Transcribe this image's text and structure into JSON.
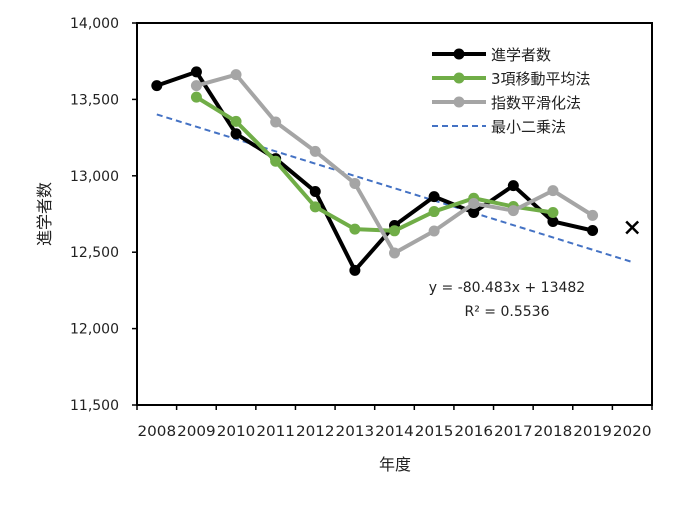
{
  "chart_data": {
    "type": "line",
    "title": "",
    "xlabel": "年度",
    "ylabel": "進学者数",
    "ylim": [
      11500,
      14000
    ],
    "yticks": [
      "11,500",
      "12,000",
      "12,500",
      "13,000",
      "13,500",
      "14,000"
    ],
    "ytick_values": [
      11500,
      12000,
      12500,
      13000,
      13500,
      14000
    ],
    "categories": [
      "2008",
      "2009",
      "2010",
      "2011",
      "2012",
      "2013",
      "2014",
      "2015",
      "2016",
      "2017",
      "2018",
      "2019",
      "2020"
    ],
    "legend_position": "top-right",
    "series": [
      {
        "name": "進学者数",
        "color": "#000000",
        "marker": "circle",
        "values": [
          13590,
          13680,
          13275,
          13112,
          12897,
          12381,
          12675,
          12864,
          12760,
          12936,
          12701,
          12642,
          null
        ]
      },
      {
        "name": "3項移動平均法",
        "color": "#70ad47",
        "marker": "circle",
        "values": [
          null,
          13515,
          13356,
          13095,
          12797,
          12651,
          12640,
          12766,
          12853,
          12799,
          12760,
          null,
          null
        ]
      },
      {
        "name": "指数平滑化法",
        "color": "#a5a5a5",
        "marker": "circle",
        "values": [
          null,
          13590,
          13662,
          13352,
          13160,
          12950,
          12495,
          12639,
          12819,
          12772,
          12903,
          12741,
          null
        ]
      },
      {
        "name": "最小二乗法",
        "color": "#4472c4",
        "dashed": true,
        "trendline": {
          "slope": -80.483,
          "intercept": 13482
        }
      }
    ],
    "forecast_point": {
      "category": "2020",
      "value": 12662,
      "marker": "x",
      "color": "#000000"
    },
    "annotations": {
      "equation": "y = -80.483x + 13482",
      "r2": "R² = 0.5536"
    }
  }
}
